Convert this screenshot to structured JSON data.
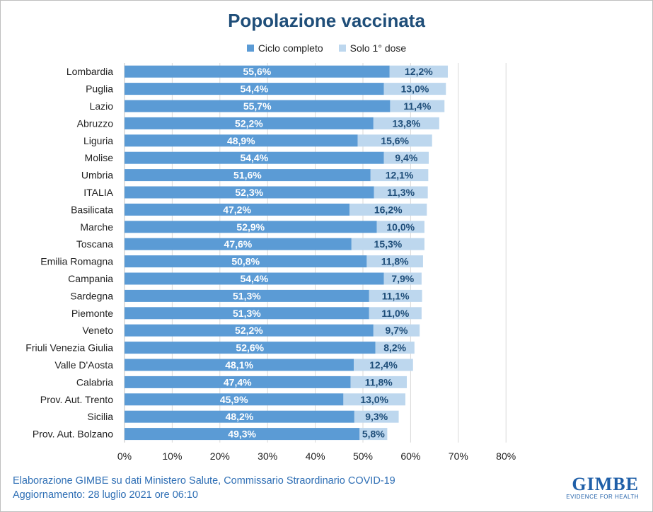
{
  "chart_data": {
    "type": "bar",
    "orientation": "horizontal",
    "stacked": true,
    "title": "Popolazione vaccinata",
    "categories": [
      "Lombardia",
      "Puglia",
      "Lazio",
      "Abruzzo",
      "Liguria",
      "Molise",
      "Umbria",
      "ITALIA",
      "Basilicata",
      "Marche",
      "Toscana",
      "Emilia Romagna",
      "Campania",
      "Sardegna",
      "Piemonte",
      "Veneto",
      "Friuli Venezia Giulia",
      "Valle D'Aosta",
      "Calabria",
      "Prov. Aut. Trento",
      "Sicilia",
      "Prov. Aut. Bolzano"
    ],
    "series": [
      {
        "name": "Ciclo completo",
        "color": "#5b9bd5",
        "values": [
          55.6,
          54.4,
          55.7,
          52.2,
          48.9,
          54.4,
          51.6,
          52.3,
          47.2,
          52.9,
          47.6,
          50.8,
          54.4,
          51.3,
          51.3,
          52.2,
          52.6,
          48.1,
          47.4,
          45.9,
          48.2,
          49.3
        ],
        "labels": [
          "55,6%",
          "54,4%",
          "55,7%",
          "52,2%",
          "48,9%",
          "54,4%",
          "51,6%",
          "52,3%",
          "47,2%",
          "52,9%",
          "47,6%",
          "50,8%",
          "54,4%",
          "51,3%",
          "51,3%",
          "52,2%",
          "52,6%",
          "48,1%",
          "47,4%",
          "45,9%",
          "48,2%",
          "49,3%"
        ]
      },
      {
        "name": "Solo 1° dose",
        "color": "#bdd7ee",
        "values": [
          12.2,
          13.0,
          11.4,
          13.8,
          15.6,
          9.4,
          12.1,
          11.3,
          16.2,
          10.0,
          15.3,
          11.8,
          7.9,
          11.1,
          11.0,
          9.7,
          8.2,
          12.4,
          11.8,
          13.0,
          9.3,
          5.8
        ],
        "labels": [
          "12,2%",
          "13,0%",
          "11,4%",
          "13,8%",
          "15,6%",
          "9,4%",
          "12,1%",
          "11,3%",
          "16,2%",
          "10,0%",
          "15,3%",
          "11,8%",
          "7,9%",
          "11,1%",
          "11,0%",
          "9,7%",
          "8,2%",
          "12,4%",
          "11,8%",
          "13,0%",
          "9,3%",
          "5,8%"
        ]
      }
    ],
    "xlim": [
      0,
      80
    ],
    "xticks": [
      "0%",
      "10%",
      "20%",
      "30%",
      "40%",
      "50%",
      "60%",
      "70%",
      "80%"
    ],
    "legend_position": "top",
    "grid": true
  },
  "footer": {
    "line1": "Elaborazione GIMBE su dati Ministero Salute, Commissario Straordinario COVID-19",
    "line2": "Aggiornamento: 28 luglio 2021 ore 06:10"
  },
  "logo": {
    "name": "GIMBE",
    "tagline": "EVIDENCE FOR HEALTH"
  }
}
